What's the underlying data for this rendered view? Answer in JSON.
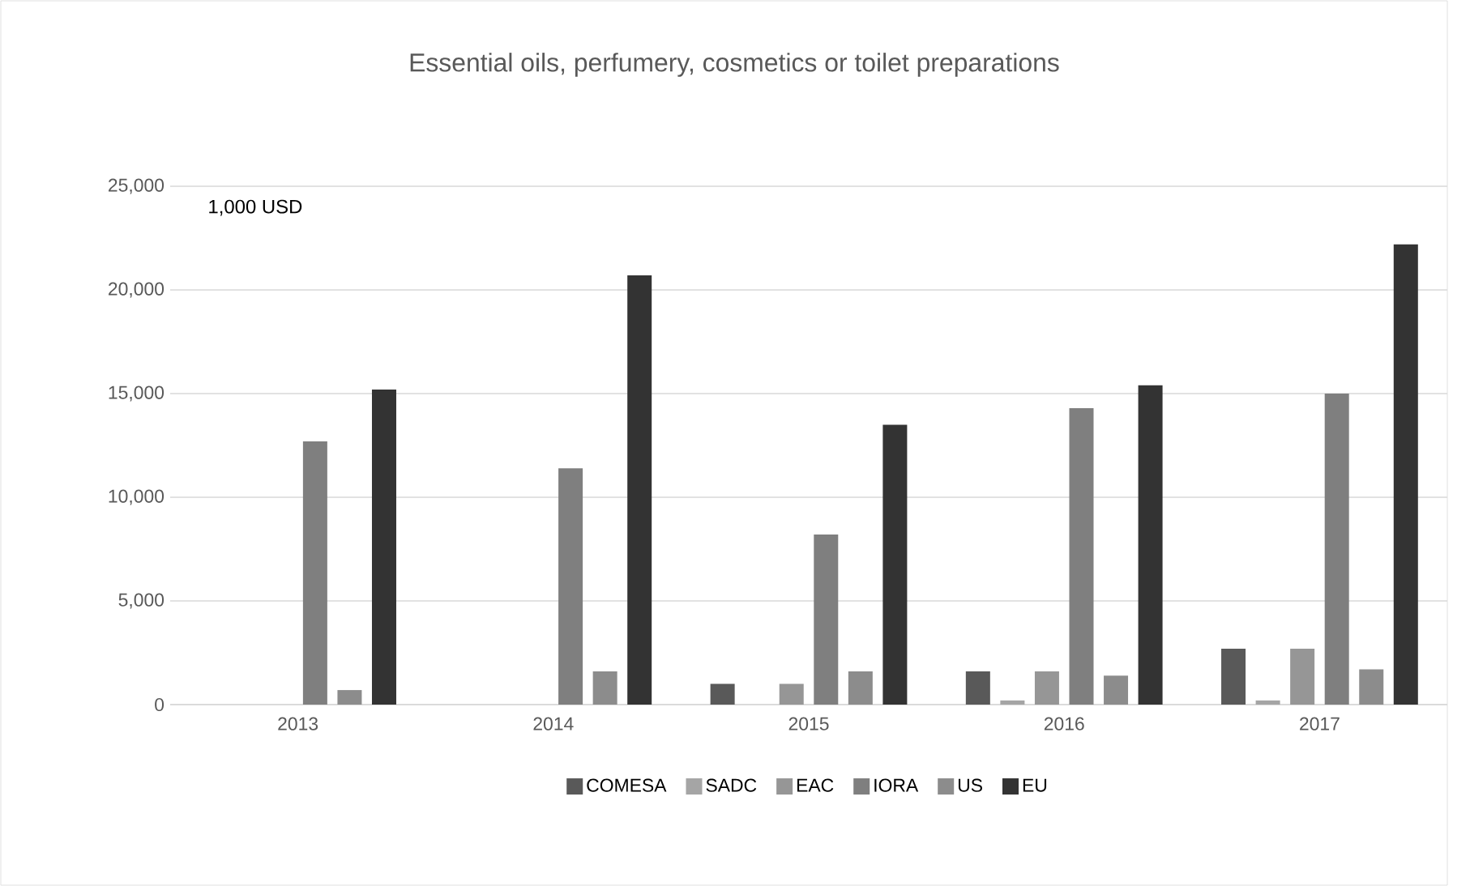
{
  "chart_data": {
    "type": "bar",
    "title": "Essential oils, perfumery, cosmetics or toilet preparations",
    "annotations": [
      "1,000 USD"
    ],
    "categories": [
      "2013",
      "2014",
      "2015",
      "2016",
      "2017"
    ],
    "series": [
      {
        "name": "COMESA",
        "color": "#595959",
        "values": [
          0,
          0,
          1000,
          1600,
          2700
        ]
      },
      {
        "name": "SADC",
        "color": "#a5a5a5",
        "values": [
          0,
          0,
          0,
          200,
          200
        ]
      },
      {
        "name": "EAC",
        "color": "#969696",
        "values": [
          0,
          0,
          1000,
          1600,
          2700
        ]
      },
      {
        "name": "IORA",
        "color": "#7f7f7f",
        "values": [
          12700,
          11400,
          8200,
          14300,
          15000
        ]
      },
      {
        "name": "US",
        "color": "#8c8c8c",
        "values": [
          700,
          1600,
          1600,
          1400,
          1700
        ]
      },
      {
        "name": "EU",
        "color": "#333333",
        "values": [
          15200,
          20700,
          13500,
          15400,
          22200
        ]
      }
    ],
    "ylim": [
      0,
      25000
    ],
    "yticks": [
      0,
      {
        "value": 5000,
        "label": "5,000"
      },
      {
        "value": 10000,
        "label": "10,000"
      },
      {
        "value": 15000,
        "label": "15,000"
      },
      {
        "value": 20000,
        "label": "20,000"
      },
      {
        "value": 25000,
        "label": "25,000"
      }
    ],
    "grid": "y",
    "legend": "bottom"
  }
}
